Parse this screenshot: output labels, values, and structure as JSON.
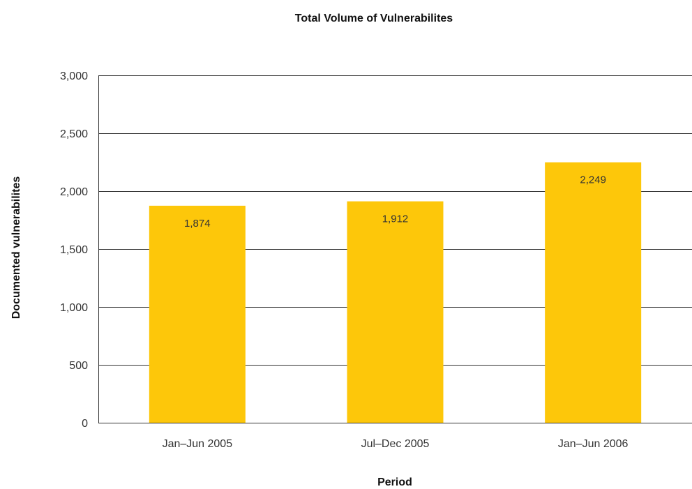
{
  "chart_data": {
    "type": "bar",
    "title": "Total Volume of Vulnerabilites",
    "xlabel": "Period",
    "ylabel": "Documented vulnerabilites",
    "categories": [
      "Jan–Jun 2005",
      "Jul–Dec 2005",
      "Jan–Jun 2006"
    ],
    "values": [
      1874,
      1912,
      2249
    ],
    "data_labels": [
      "1,874",
      "1,912",
      "2,249"
    ],
    "ylim": [
      0,
      3000
    ],
    "yticks": [
      0,
      500,
      1000,
      1500,
      2000,
      2500,
      3000
    ],
    "ytick_labels": [
      "0",
      "500",
      "1,000",
      "1,500",
      "2,000",
      "2,500",
      "3,000"
    ],
    "grid": true,
    "legend": "none",
    "bar_color": "#FDC70A"
  }
}
